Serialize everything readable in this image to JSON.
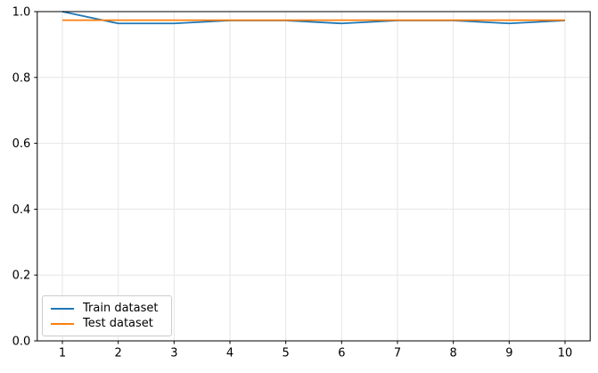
{
  "chart_data": {
    "type": "line",
    "x": [
      1,
      2,
      3,
      4,
      5,
      6,
      7,
      8,
      9,
      10
    ],
    "series": [
      {
        "name": "Train dataset",
        "color": "#1f77b4",
        "values": [
          1.0,
          0.964,
          0.964,
          0.973,
          0.973,
          0.964,
          0.973,
          0.973,
          0.964,
          0.973
        ]
      },
      {
        "name": "Test dataset",
        "color": "#ff7f0e",
        "values": [
          0.974,
          0.974,
          0.974,
          0.974,
          0.974,
          0.974,
          0.974,
          0.974,
          0.974,
          0.974
        ]
      }
    ],
    "title": "",
    "xlabel": "",
    "ylabel": "",
    "xlim": [
      0.55,
      10.45
    ],
    "ylim": [
      0.0,
      1.0
    ],
    "xticks": [
      1,
      2,
      3,
      4,
      5,
      6,
      7,
      8,
      9,
      10
    ],
    "xtick_labels": [
      "1",
      "2",
      "3",
      "4",
      "5",
      "6",
      "7",
      "8",
      "9",
      "10"
    ],
    "yticks": [
      0.0,
      0.2,
      0.4,
      0.6,
      0.8,
      1.0
    ],
    "ytick_labels": [
      "0.0",
      "0.2",
      "0.4",
      "0.6",
      "0.8",
      "1.0"
    ],
    "grid": true,
    "legend": {
      "position": "lower left",
      "entries": [
        "Train dataset",
        "Test dataset"
      ]
    }
  },
  "colors": {
    "background": "#ffffff",
    "grid": "#e6e6e6",
    "spine": "#000000",
    "tick_label": "#000000",
    "legend_border": "#cccccc"
  }
}
